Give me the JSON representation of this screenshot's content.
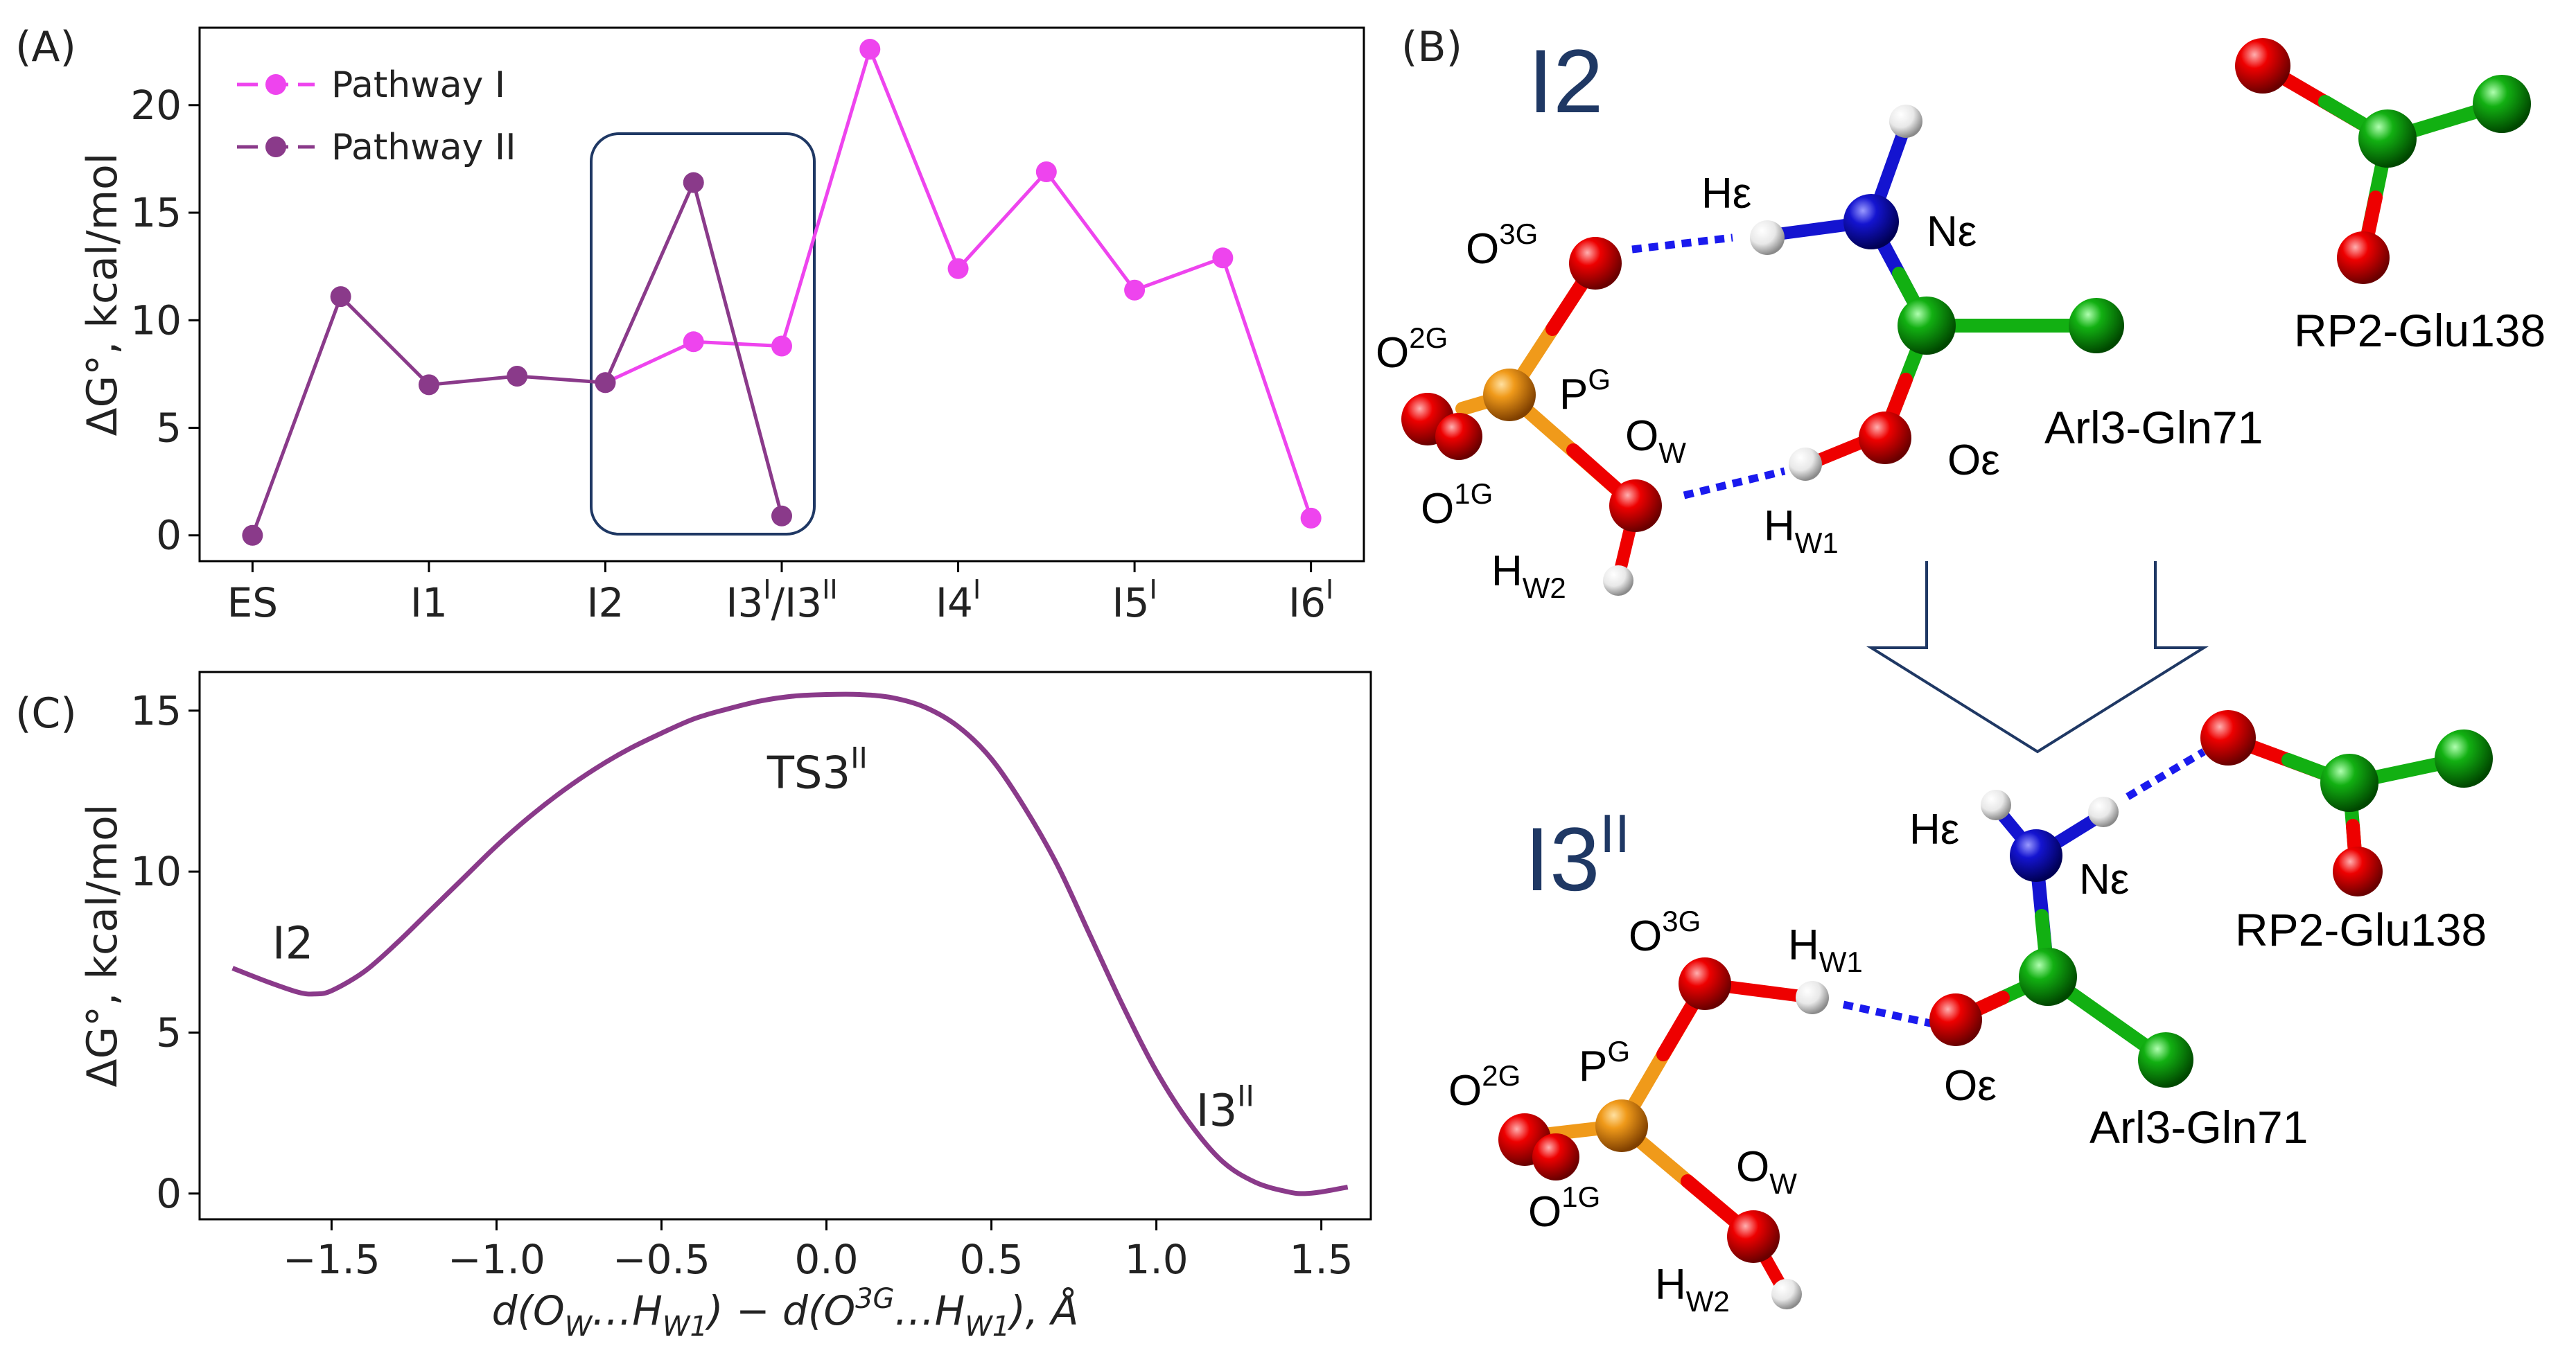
{
  "colors": {
    "pathway_i": "#ee44ee",
    "pathway_ii": "#8a3a8a",
    "navy": "#1f3864",
    "oxygen": "#ee0000",
    "hydrogen": "#f4f4f4",
    "nitrogen": "#1414d0",
    "carbon": "#12b012",
    "phosphorus": "#f09a1a",
    "hbond": "#1a1aee"
  },
  "panels": {
    "a": "(A)",
    "b": "(B)",
    "c": "(C)"
  },
  "chart_data": [
    {
      "type": "line",
      "panel": "A",
      "ylabel": "ΔG°, kcal/mol",
      "ylim": [
        -1.2,
        23.6
      ],
      "yticks": [
        0,
        5,
        10,
        15,
        20
      ],
      "x_ticks": [
        {
          "x": 0,
          "base": "ES",
          "sup": ""
        },
        {
          "x": 2,
          "base": "I1",
          "sup": ""
        },
        {
          "x": 4,
          "base": "I2",
          "sup": ""
        },
        {
          "x": 6,
          "base": "I3",
          "sup": "I",
          "base2": "/I3",
          "sup2": "II"
        },
        {
          "x": 8,
          "base": "I4",
          "sup": "I"
        },
        {
          "x": 10,
          "base": "I5",
          "sup": "I"
        },
        {
          "x": 12,
          "base": "I6",
          "sup": "I"
        }
      ],
      "series": [
        {
          "name": "Pathway I",
          "color_key": "pathway_i",
          "x": [
            4,
            5,
            6,
            7,
            8,
            9,
            10,
            11,
            12
          ],
          "values": [
            7.1,
            9.0,
            8.8,
            22.6,
            12.4,
            16.9,
            11.4,
            12.9,
            0.8
          ]
        },
        {
          "name": "Pathway II",
          "color_key": "pathway_ii",
          "x": [
            0,
            1,
            2,
            3,
            4,
            5,
            6
          ],
          "values": [
            0.0,
            11.1,
            7.0,
            7.4,
            7.1,
            16.4,
            0.9
          ]
        }
      ],
      "highlight_x_range": [
        3.7,
        6.3
      ]
    },
    {
      "type": "line",
      "panel": "C",
      "xlabel_parts": [
        "d(O",
        "W",
        "…H",
        "W1",
        ") − d(O",
        "3G",
        "…H",
        "W1",
        "), Å"
      ],
      "ylabel": "ΔG°, kcal/mol",
      "xlim": [
        -1.9,
        1.65
      ],
      "ylim": [
        -0.8,
        16.2
      ],
      "xticks": [
        -1.5,
        -1.0,
        -0.5,
        0.0,
        0.5,
        1.0,
        1.5
      ],
      "xtick_labels": [
        "−1.5",
        "−1.0",
        "−0.5",
        "0.0",
        "0.5",
        "1.0",
        "1.5"
      ],
      "yticks": [
        0,
        5,
        10,
        15
      ],
      "curve": {
        "x": [
          -1.8,
          -1.7,
          -1.6,
          -1.55,
          -1.5,
          -1.4,
          -1.3,
          -1.2,
          -1.1,
          -1.0,
          -0.9,
          -0.8,
          -0.7,
          -0.6,
          -0.5,
          -0.4,
          -0.3,
          -0.2,
          -0.1,
          0.0,
          0.1,
          0.2,
          0.3,
          0.4,
          0.5,
          0.6,
          0.7,
          0.8,
          0.9,
          1.0,
          1.1,
          1.2,
          1.3,
          1.4,
          1.45,
          1.5,
          1.58
        ],
        "y": [
          7.0,
          6.6,
          6.25,
          6.2,
          6.3,
          6.9,
          7.8,
          8.8,
          9.8,
          10.8,
          11.7,
          12.5,
          13.2,
          13.8,
          14.3,
          14.75,
          15.05,
          15.3,
          15.45,
          15.5,
          15.5,
          15.4,
          15.1,
          14.5,
          13.5,
          12.0,
          10.2,
          8.0,
          5.8,
          3.8,
          2.2,
          1.0,
          0.35,
          0.05,
          0.0,
          0.05,
          0.2
        ]
      },
      "annotations": [
        {
          "base": "I2",
          "sup": "",
          "x": -1.68,
          "y": 7.3
        },
        {
          "base": "TS3",
          "sup": "II",
          "x": -0.18,
          "y": 12.6
        },
        {
          "base": "I3",
          "sup": "II",
          "x": 1.12,
          "y": 2.1
        }
      ]
    }
  ],
  "panel_b": {
    "top_title": "I2",
    "bottom_title_base": "I3",
    "bottom_title_sup": "II",
    "labels": {
      "o3g": {
        "base": "O",
        "sup": "3G"
      },
      "o2g": {
        "base": "O",
        "sup": "2G"
      },
      "o1g": {
        "base": "O",
        "sup": "1G"
      },
      "pg": {
        "base": "P",
        "sup": "G"
      },
      "ow": {
        "base": "O",
        "sub": "W"
      },
      "hw1": {
        "base": "H",
        "sub": "W1"
      },
      "hw2": {
        "base": "H",
        "sub": "W2"
      },
      "he": "Hε",
      "ne": "Nε",
      "oe": "Oε",
      "gln": "Arl3-Gln71",
      "glu": "RP2-Glu138"
    }
  }
}
